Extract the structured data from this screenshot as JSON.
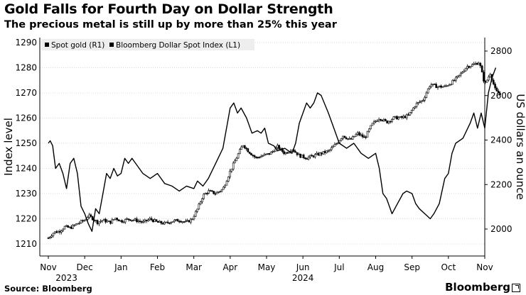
{
  "header": {
    "title": "Gold Falls for Fourth Day on Dollar Strength",
    "subtitle": "The precious metal is still up by more than 25% this year"
  },
  "footer": {
    "source": "Source: Bloomberg",
    "brand": "Bloomberg"
  },
  "chart_data": {
    "type": "line",
    "title": "Gold Falls for Fourth Day on Dollar Strength",
    "subtitle": "The precious metal is still up by more than 25% this year",
    "x_labels": [
      "Nov",
      "Dec",
      "Jan",
      "Feb",
      "Mar",
      "Apr",
      "May",
      "Jun",
      "Jul",
      "Aug",
      "Sep",
      "Oct",
      "Nov"
    ],
    "x_year_labels": [
      {
        "label": "2023",
        "month_index": 0.5
      },
      {
        "label": "2024",
        "month_index": 7
      }
    ],
    "x_range": [
      "2023-11",
      "2024-11"
    ],
    "y_left": {
      "label": "Index level",
      "min": 1210,
      "max": 1290,
      "ticks": [
        1210,
        1220,
        1230,
        1240,
        1250,
        1260,
        1270,
        1280,
        1290
      ]
    },
    "y_right": {
      "label": "US dollars an ounce",
      "min": 1880,
      "max": 2830,
      "ticks": [
        2000,
        2200,
        2400,
        2600,
        2800
      ]
    },
    "legend_position": "top-left",
    "grid": true,
    "series": [
      {
        "name": "Spot gold (R1)",
        "axis": "right",
        "style": "candlestick",
        "points": [
          [
            0,
            1960
          ],
          [
            0.15,
            1985
          ],
          [
            0.3,
            1990
          ],
          [
            0.45,
            2010
          ],
          [
            0.6,
            2005
          ],
          [
            0.8,
            2025
          ],
          [
            1.0,
            2040
          ],
          [
            1.1,
            2060
          ],
          [
            1.2,
            2050
          ],
          [
            1.35,
            2030
          ],
          [
            1.5,
            2040
          ],
          [
            1.7,
            2030
          ],
          [
            1.85,
            2050
          ],
          [
            2.0,
            2035
          ],
          [
            2.2,
            2045
          ],
          [
            2.4,
            2040
          ],
          [
            2.6,
            2030
          ],
          [
            2.8,
            2045
          ],
          [
            3.0,
            2030
          ],
          [
            3.2,
            2025
          ],
          [
            3.4,
            2035
          ],
          [
            3.6,
            2040
          ],
          [
            3.8,
            2030
          ],
          [
            3.95,
            2045
          ],
          [
            4.1,
            2090
          ],
          [
            4.25,
            2150
          ],
          [
            4.4,
            2170
          ],
          [
            4.6,
            2160
          ],
          [
            4.8,
            2180
          ],
          [
            5.0,
            2260
          ],
          [
            5.2,
            2330
          ],
          [
            5.35,
            2380
          ],
          [
            5.5,
            2350
          ],
          [
            5.7,
            2320
          ],
          [
            5.9,
            2330
          ],
          [
            6.1,
            2340
          ],
          [
            6.3,
            2370
          ],
          [
            6.5,
            2340
          ],
          [
            6.7,
            2360
          ],
          [
            6.9,
            2330
          ],
          [
            7.1,
            2320
          ],
          [
            7.3,
            2330
          ],
          [
            7.5,
            2340
          ],
          [
            7.7,
            2350
          ],
          [
            7.9,
            2380
          ],
          [
            8.1,
            2420
          ],
          [
            8.3,
            2400
          ],
          [
            8.5,
            2430
          ],
          [
            8.7,
            2410
          ],
          [
            8.9,
            2470
          ],
          [
            9.1,
            2500
          ],
          [
            9.3,
            2480
          ],
          [
            9.5,
            2500
          ],
          [
            9.7,
            2500
          ],
          [
            9.9,
            2510
          ],
          [
            10.1,
            2560
          ],
          [
            10.3,
            2580
          ],
          [
            10.5,
            2650
          ],
          [
            10.7,
            2640
          ],
          [
            10.9,
            2640
          ],
          [
            11.1,
            2660
          ],
          [
            11.3,
            2690
          ],
          [
            11.5,
            2730
          ],
          [
            11.7,
            2740
          ],
          [
            11.85,
            2750
          ],
          [
            12.0,
            2650
          ],
          [
            12.15,
            2700
          ],
          [
            12.3,
            2620
          ],
          [
            12.45,
            2600
          ]
        ]
      },
      {
        "name": "Bloomberg Dollar Spot Index (L1)",
        "axis": "left",
        "style": "line",
        "points": [
          [
            0,
            1250
          ],
          [
            0.05,
            1251
          ],
          [
            0.12,
            1249
          ],
          [
            0.2,
            1240
          ],
          [
            0.3,
            1242
          ],
          [
            0.4,
            1238
          ],
          [
            0.5,
            1232
          ],
          [
            0.6,
            1242
          ],
          [
            0.7,
            1244
          ],
          [
            0.8,
            1238
          ],
          [
            0.9,
            1225
          ],
          [
            1.0,
            1222
          ],
          [
            1.1,
            1218
          ],
          [
            1.2,
            1215
          ],
          [
            1.3,
            1224
          ],
          [
            1.4,
            1222
          ],
          [
            1.5,
            1230
          ],
          [
            1.6,
            1238
          ],
          [
            1.7,
            1236
          ],
          [
            1.8,
            1240
          ],
          [
            1.9,
            1237
          ],
          [
            2.0,
            1238
          ],
          [
            2.1,
            1244
          ],
          [
            2.2,
            1242
          ],
          [
            2.3,
            1244
          ],
          [
            2.4,
            1242
          ],
          [
            2.6,
            1238
          ],
          [
            2.8,
            1236
          ],
          [
            3.0,
            1238
          ],
          [
            3.2,
            1234
          ],
          [
            3.4,
            1233
          ],
          [
            3.6,
            1231
          ],
          [
            3.8,
            1233
          ],
          [
            4.0,
            1232
          ],
          [
            4.1,
            1235
          ],
          [
            4.25,
            1233
          ],
          [
            4.4,
            1236
          ],
          [
            4.6,
            1242
          ],
          [
            4.8,
            1248
          ],
          [
            5.0,
            1264
          ],
          [
            5.1,
            1266
          ],
          [
            5.2,
            1262
          ],
          [
            5.3,
            1264
          ],
          [
            5.45,
            1260
          ],
          [
            5.6,
            1254
          ],
          [
            5.75,
            1255
          ],
          [
            5.85,
            1254
          ],
          [
            5.95,
            1256
          ],
          [
            6.05,
            1250
          ],
          [
            6.2,
            1249
          ],
          [
            6.3,
            1247
          ],
          [
            6.5,
            1248
          ],
          [
            6.7,
            1246
          ],
          [
            6.8,
            1250
          ],
          [
            6.9,
            1258
          ],
          [
            7.0,
            1262
          ],
          [
            7.1,
            1266
          ],
          [
            7.2,
            1264
          ],
          [
            7.3,
            1266
          ],
          [
            7.4,
            1270
          ],
          [
            7.5,
            1269
          ],
          [
            7.7,
            1262
          ],
          [
            7.85,
            1256
          ],
          [
            8.0,
            1250
          ],
          [
            8.2,
            1248
          ],
          [
            8.4,
            1250
          ],
          [
            8.6,
            1246
          ],
          [
            8.8,
            1244
          ],
          [
            9.0,
            1246
          ],
          [
            9.1,
            1240
          ],
          [
            9.2,
            1230
          ],
          [
            9.3,
            1228
          ],
          [
            9.45,
            1222
          ],
          [
            9.6,
            1226
          ],
          [
            9.75,
            1230
          ],
          [
            9.85,
            1231
          ],
          [
            10.0,
            1230
          ],
          [
            10.1,
            1226
          ],
          [
            10.2,
            1224
          ],
          [
            10.35,
            1222
          ],
          [
            10.5,
            1220
          ],
          [
            10.6,
            1222
          ],
          [
            10.75,
            1226
          ],
          [
            10.9,
            1236
          ],
          [
            11.0,
            1238
          ],
          [
            11.1,
            1246
          ],
          [
            11.2,
            1250
          ],
          [
            11.4,
            1252
          ],
          [
            11.6,
            1258
          ],
          [
            11.7,
            1262
          ],
          [
            11.8,
            1256
          ],
          [
            11.9,
            1262
          ],
          [
            12.0,
            1256
          ],
          [
            12.1,
            1270
          ],
          [
            12.2,
            1276
          ],
          [
            12.3,
            1280
          ]
        ]
      }
    ]
  }
}
